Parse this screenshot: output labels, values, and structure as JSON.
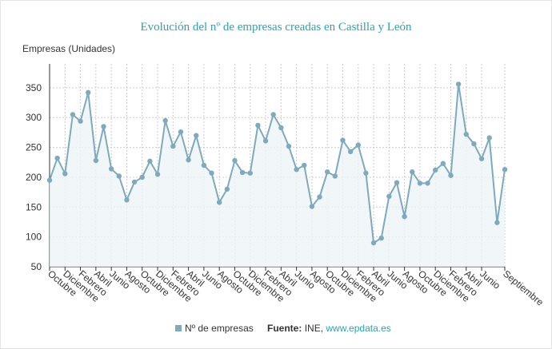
{
  "chart_data": {
    "type": "line",
    "title": "Evolución del nº de empresas creadas en Castilla y León",
    "y_label": "Empresas (Unidades)",
    "categories": [
      "Octubre",
      null,
      "Diciembre",
      null,
      "Febrero",
      null,
      "Abril",
      null,
      "Junio",
      null,
      "Agosto",
      null,
      "Octubre",
      null,
      "Diciembre",
      null,
      "Febrero",
      null,
      "Abril",
      null,
      "Junio",
      null,
      "Agosto",
      null,
      "Octubre",
      null,
      "Diciembre",
      null,
      "Febrero",
      null,
      "Abril",
      null,
      "Junio",
      null,
      "Agosto",
      null,
      "Octubre",
      null,
      "Diciembre",
      null,
      "Febrero",
      null,
      "Abril",
      null,
      "Junio",
      null,
      "Agosto",
      null,
      "Octubre",
      null,
      "Diciembre",
      null,
      "Febrero",
      null,
      "Abril",
      null,
      "Junio",
      null,
      null,
      "Septiembre"
    ],
    "series": [
      {
        "name": "Nº de empresas",
        "color": "#7eaabd",
        "values": [
          195,
          232,
          206,
          305,
          294,
          342,
          228,
          285,
          214,
          202,
          162,
          192,
          200,
          227,
          205,
          295,
          252,
          276,
          229,
          270,
          220,
          207,
          158,
          180,
          228,
          208,
          207,
          287,
          261,
          305,
          283,
          252,
          213,
          220,
          151,
          167,
          209,
          202,
          262,
          243,
          254,
          207,
          90,
          98,
          168,
          191,
          134,
          209,
          190,
          190,
          212,
          223,
          203,
          356,
          272,
          256,
          231,
          266,
          124,
          213
        ]
      }
    ],
    "ylim": [
      50,
      390
    ],
    "yticks": [
      50,
      100,
      150,
      200,
      250,
      300,
      350
    ],
    "grid": true,
    "source": {
      "label": "Fuente:",
      "text": "INE,",
      "link": "www.epdata.es"
    }
  }
}
